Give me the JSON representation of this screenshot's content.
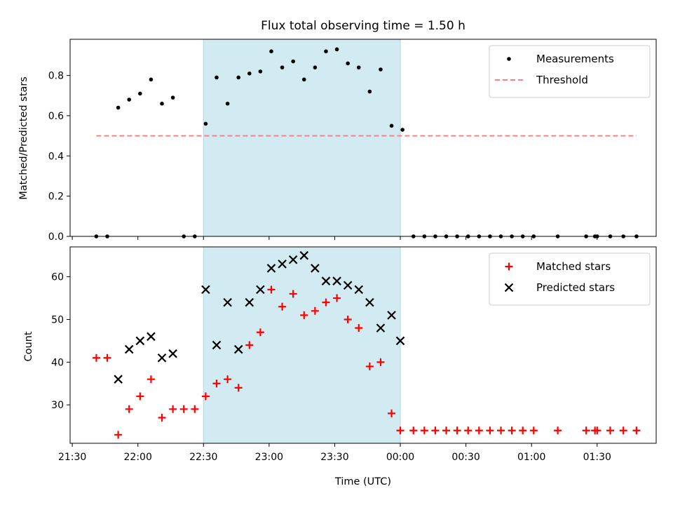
{
  "chart_data": [
    {
      "type": "scatter",
      "title": "Flux total observing time = 1.50 h",
      "ylabel": "Matched/Predicted stars",
      "ylim": [
        0,
        0.98
      ],
      "yticks": [
        "0.0",
        "0.2",
        "0.4",
        "0.6",
        "0.8"
      ],
      "ytick_values": [
        0,
        0.2,
        0.4,
        0.6,
        0.8
      ],
      "xlim": [
        "21:29",
        "01:57"
      ],
      "shaded_interval": [
        "22:30",
        "00:00"
      ],
      "shaded_color": "#add8e6",
      "legend_position": "upper right",
      "series": [
        {
          "name": "Measurements",
          "marker": "dot",
          "color": "#000000",
          "x": [
            "21:41",
            "21:46",
            "21:51",
            "21:56",
            "22:01",
            "22:06",
            "22:11",
            "22:16",
            "22:21",
            "22:26",
            "22:31",
            "22:36",
            "22:41",
            "22:46",
            "22:51",
            "22:56",
            "23:01",
            "23:06",
            "23:11",
            "23:16",
            "23:21",
            "23:26",
            "23:31",
            "23:36",
            "23:41",
            "23:46",
            "23:51",
            "23:56",
            "00:01",
            "00:06",
            "00:11",
            "00:16",
            "00:21",
            "00:26",
            "00:31",
            "00:36",
            "00:41",
            "00:46",
            "00:51",
            "00:56",
            "01:01",
            "01:12",
            "01:25",
            "01:29",
            "01:30",
            "01:36",
            "01:42",
            "01:48"
          ],
          "y": [
            0,
            0,
            0.64,
            0.68,
            0.71,
            0.78,
            0.66,
            0.69,
            0,
            0,
            0.56,
            0.79,
            0.66,
            0.79,
            0.81,
            0.82,
            0.92,
            0.84,
            0.87,
            0.78,
            0.84,
            0.92,
            0.93,
            0.86,
            0.84,
            0.72,
            0.83,
            0.55,
            0.53,
            0,
            0,
            0,
            0,
            0,
            0,
            0,
            0,
            0,
            0,
            0,
            0,
            0,
            0,
            0,
            0,
            0,
            0,
            0
          ]
        },
        {
          "name": "Threshold",
          "marker": "dashed-line",
          "color": "#ff7f7f",
          "x": [
            "21:41",
            "01:48"
          ],
          "y": [
            0.5,
            0.5
          ]
        }
      ]
    },
    {
      "type": "scatter",
      "ylabel": "Count",
      "xlabel": "Time (UTC)",
      "ylim": [
        21,
        67
      ],
      "yticks": [
        "30",
        "40",
        "50",
        "60"
      ],
      "ytick_values": [
        30,
        40,
        50,
        60
      ],
      "xlim": [
        "21:29",
        "01:57"
      ],
      "xticks": [
        "21:30",
        "22:00",
        "22:30",
        "23:00",
        "23:30",
        "00:00",
        "00:30",
        "01:00",
        "01:30"
      ],
      "shaded_interval": [
        "22:30",
        "00:00"
      ],
      "shaded_color": "#add8e6",
      "legend_position": "upper right",
      "series": [
        {
          "name": "Matched stars",
          "marker": "plus",
          "color": "#ff0000",
          "x": [
            "21:41",
            "21:46",
            "21:51",
            "21:56",
            "22:01",
            "22:06",
            "22:11",
            "22:16",
            "22:21",
            "22:26",
            "22:31",
            "22:36",
            "22:41",
            "22:46",
            "22:51",
            "22:56",
            "23:01",
            "23:06",
            "23:11",
            "23:16",
            "23:21",
            "23:26",
            "23:31",
            "23:36",
            "23:41",
            "23:46",
            "23:51",
            "23:56",
            "00:00",
            "00:06",
            "00:11",
            "00:16",
            "00:21",
            "00:26",
            "00:31",
            "00:36",
            "00:41",
            "00:46",
            "00:51",
            "00:56",
            "01:01",
            "01:12",
            "01:25",
            "01:29",
            "01:30",
            "01:36",
            "01:42",
            "01:48"
          ],
          "y": [
            41,
            41,
            23,
            29,
            32,
            36,
            27,
            29,
            29,
            29,
            32,
            35,
            36,
            34,
            44,
            47,
            57,
            53,
            56,
            51,
            52,
            54,
            55,
            50,
            48,
            39,
            40,
            28,
            24,
            24,
            24,
            24,
            24,
            24,
            24,
            24,
            24,
            24,
            24,
            24,
            24,
            24,
            24,
            24,
            24,
            24,
            24,
            24
          ]
        },
        {
          "name": "Predicted stars",
          "marker": "x",
          "color": "#000000",
          "x": [
            "21:51",
            "21:56",
            "22:01",
            "22:06",
            "22:11",
            "22:16",
            "22:31",
            "22:36",
            "22:41",
            "22:46",
            "22:51",
            "22:56",
            "23:01",
            "23:06",
            "23:11",
            "23:16",
            "23:21",
            "23:26",
            "23:31",
            "23:36",
            "23:41",
            "23:46",
            "23:51",
            "23:56",
            "00:00"
          ],
          "y": [
            36,
            43,
            45,
            46,
            41,
            42,
            57,
            44,
            54,
            43,
            54,
            57,
            62,
            63,
            64,
            65,
            62,
            59,
            59,
            58,
            57,
            54,
            48,
            51,
            45
          ]
        }
      ]
    }
  ]
}
